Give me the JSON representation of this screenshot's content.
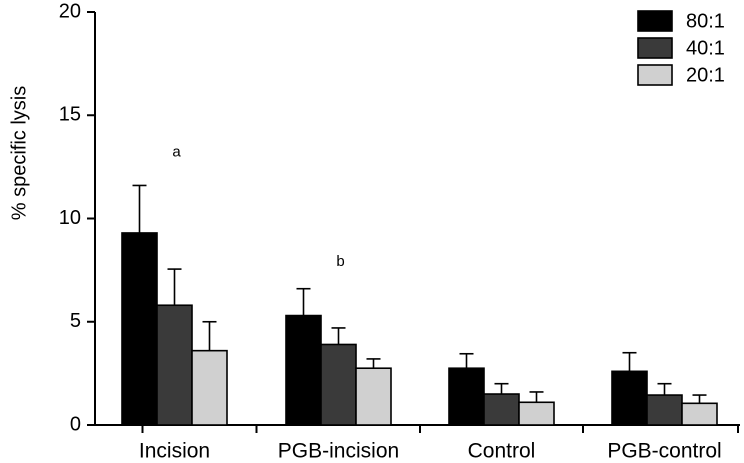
{
  "chart_data": {
    "type": "bar",
    "title": "",
    "xlabel": "",
    "ylabel": "% specific lysis",
    "ylim": [
      0,
      20
    ],
    "yticks": [
      0,
      5,
      10,
      15,
      20
    ],
    "categories": [
      "Incision",
      "PGB-incision",
      "Control",
      "PGB-control"
    ],
    "series": [
      {
        "name": "80:1",
        "color": "#000000",
        "values": [
          9.3,
          5.3,
          2.75,
          2.6
        ],
        "errors": [
          2.3,
          1.3,
          0.7,
          0.9
        ]
      },
      {
        "name": "40:1",
        "color": "#3a3a3a",
        "values": [
          5.8,
          3.9,
          1.5,
          1.45
        ],
        "errors": [
          1.75,
          0.8,
          0.5,
          0.55
        ]
      },
      {
        "name": "20:1",
        "color": "#d0d0d0",
        "values": [
          3.6,
          2.75,
          1.1,
          1.05
        ],
        "errors": [
          1.4,
          0.45,
          0.5,
          0.4
        ]
      }
    ],
    "annotations": [
      {
        "text": "a",
        "category": "Incision",
        "y": 13.2
      },
      {
        "text": "b",
        "category": "PGB-incision",
        "y": 7.9
      }
    ],
    "legend_position": "top-right"
  }
}
